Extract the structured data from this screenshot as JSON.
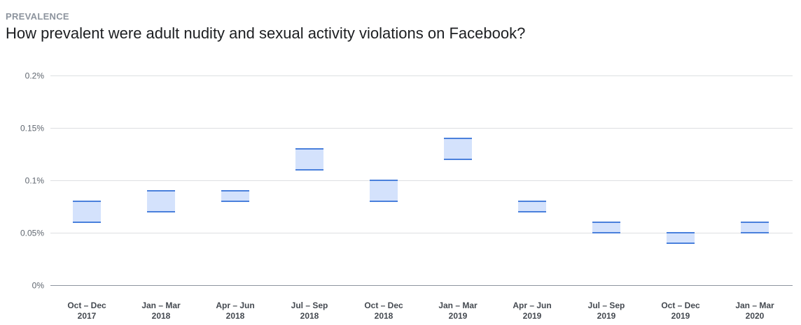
{
  "header": {
    "eyebrow": "PREVALENCE",
    "title": "How prevalent were adult nudity and sexual activity violations on Facebook?"
  },
  "colors": {
    "range_fill": "#d4e2fc",
    "range_line": "#4a80dc",
    "grid": "#dddfe2",
    "axis": "#8d949e"
  },
  "chart_data": {
    "type": "range-bar",
    "title": "How prevalent were adult nudity and sexual activity violations on Facebook?",
    "xlabel": "",
    "ylabel": "",
    "ylim": [
      0,
      0.2
    ],
    "y_ticks": [
      {
        "value": 0,
        "label": "0%"
      },
      {
        "value": 0.05,
        "label": "0.05%"
      },
      {
        "value": 0.1,
        "label": "0.1%"
      },
      {
        "value": 0.15,
        "label": "0.15%"
      },
      {
        "value": 0.2,
        "label": "0.2%"
      }
    ],
    "grid": true,
    "legend": "none",
    "categories": [
      {
        "line1": "Oct – Dec",
        "line2": "2017"
      },
      {
        "line1": "Jan – Mar",
        "line2": "2018"
      },
      {
        "line1": "Apr – Jun",
        "line2": "2018"
      },
      {
        "line1": "Jul – Sep",
        "line2": "2018"
      },
      {
        "line1": "Oct – Dec",
        "line2": "2018"
      },
      {
        "line1": "Jan – Mar",
        "line2": "2019"
      },
      {
        "line1": "Apr – Jun",
        "line2": "2019"
      },
      {
        "line1": "Jul – Sep",
        "line2": "2019"
      },
      {
        "line1": "Oct – Dec",
        "line2": "2019"
      },
      {
        "line1": "Jan – Mar",
        "line2": "2020"
      }
    ],
    "ranges": [
      {
        "low": 0.06,
        "high": 0.08
      },
      {
        "low": 0.07,
        "high": 0.09
      },
      {
        "low": 0.08,
        "high": 0.09
      },
      {
        "low": 0.11,
        "high": 0.13
      },
      {
        "low": 0.08,
        "high": 0.1
      },
      {
        "low": 0.12,
        "high": 0.14
      },
      {
        "low": 0.07,
        "high": 0.08
      },
      {
        "low": 0.05,
        "high": 0.06
      },
      {
        "low": 0.04,
        "high": 0.05
      },
      {
        "low": 0.05,
        "high": 0.06
      }
    ]
  }
}
